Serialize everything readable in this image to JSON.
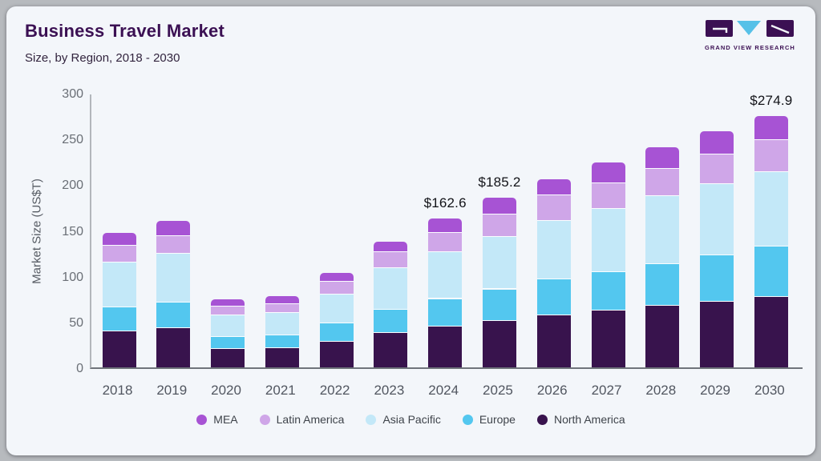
{
  "header": {
    "title": "Business Travel Market",
    "subtitle": "Size, by Region, 2018 - 2030"
  },
  "logo": {
    "text": "GRAND VIEW RESEARCH",
    "mark_dark": "#3b1053",
    "mark_cyan": "#56c1e8"
  },
  "colors": {
    "card_bg": "#f3f6fa",
    "outer_bg": "#b7babe",
    "title": "#3b1053",
    "data_label": "#121318",
    "axis_x": "#6f747b",
    "axis_y": "#b2b6bb"
  },
  "chart_data": {
    "type": "bar",
    "stacked": true,
    "title": "Business Travel Market Size, by Region, 2018 - 2030",
    "xlabel": "",
    "ylabel": "Market Size (US$T)",
    "ylim": [
      0,
      300
    ],
    "yticks": [
      0,
      50,
      100,
      150,
      200,
      250,
      300
    ],
    "grid": false,
    "legend_position": "bottom",
    "categories": [
      "2018",
      "2019",
      "2020",
      "2021",
      "2022",
      "2023",
      "2024",
      "2025",
      "2026",
      "2027",
      "2028",
      "2029",
      "2030"
    ],
    "series": [
      {
        "name": "North America",
        "color": "#38134d",
        "values": [
          39.5,
          43,
          20,
          21,
          28,
          37.5,
          44.4,
          51,
          57,
          62,
          67,
          72,
          77.4
        ]
      },
      {
        "name": "Europe",
        "color": "#53c7ef",
        "values": [
          26.5,
          27.5,
          13.5,
          14,
          20.5,
          25.5,
          30.4,
          34.3,
          39.5,
          42,
          46,
          50.5,
          54.5
        ]
      },
      {
        "name": "Asia Pacific",
        "color": "#c3e8f8",
        "values": [
          48.5,
          54,
          23,
          24.5,
          31.5,
          45.5,
          51.3,
          57.7,
          63.5,
          69,
          74.5,
          77.5,
          81.7
        ]
      },
      {
        "name": "Latin America",
        "color": "#cfa6e8",
        "values": [
          18.5,
          19,
          10,
          9.5,
          13.5,
          17.5,
          21,
          23.9,
          28,
          28.5,
          29,
          32.5,
          35
        ]
      },
      {
        "name": "MEA",
        "color": "#a753d4",
        "values": [
          14,
          16.5,
          8,
          9,
          10,
          11,
          15.5,
          18.3,
          17.5,
          22,
          24,
          25.5,
          26.3
        ]
      }
    ],
    "totals": [
      147,
      160,
      74.5,
      78,
      103.5,
      137,
      162.6,
      185.2,
      205.5,
      223.5,
      240.5,
      258,
      274.9
    ],
    "point_labels": {
      "2024": "$162.6",
      "2025": "$185.2",
      "2030": "$274.9"
    },
    "legend_order": [
      "MEA",
      "Latin America",
      "Asia Pacific",
      "Europe",
      "North America"
    ]
  }
}
